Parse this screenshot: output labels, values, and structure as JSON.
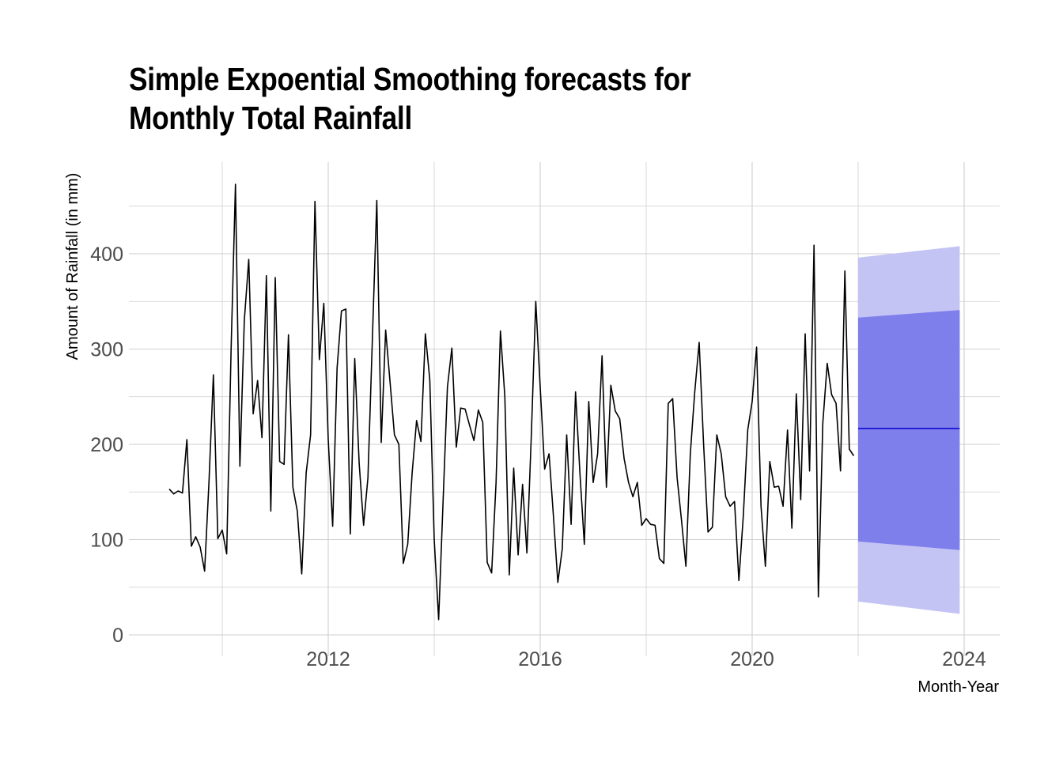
{
  "chart_data": {
    "type": "line",
    "title": "Simple Expoential Smoothing forecasts for Monthly Total Rainfall",
    "title_lines": [
      "Simple Expoential Smoothing forecasts for",
      "Monthly Total Rainfall"
    ],
    "xlabel": "Month-Year",
    "ylabel": "Amount of Rainfall (in mm)",
    "x_ticks": [
      2012,
      2016,
      2020,
      2024
    ],
    "x_tick_labels": [
      "2012",
      "2016",
      "2020",
      "2024"
    ],
    "y_ticks": [
      0,
      100,
      200,
      300,
      400
    ],
    "y_tick_labels": [
      "0",
      "100",
      "200",
      "300",
      "400"
    ],
    "xlim": [
      2008.35,
      2024.75
    ],
    "ylim": [
      -5,
      455
    ],
    "grid": true,
    "legend": "none",
    "series": [
      {
        "name": "Monthly Total Rainfall",
        "color": "#000000",
        "start": 2009.0,
        "step": 0.0833333,
        "values": [
          153,
          148,
          151,
          149,
          205,
          93,
          103,
          92,
          67,
          160,
          273,
          101,
          110,
          85,
          300,
          473,
          177,
          330,
          394,
          232,
          267,
          207,
          377,
          130,
          375,
          182,
          179,
          315,
          155,
          130,
          64,
          170,
          210,
          455,
          289,
          348,
          205,
          114,
          280,
          340,
          342,
          106,
          290,
          180,
          115,
          165,
          310,
          456,
          202,
          320,
          265,
          210,
          200,
          75,
          95,
          170,
          225,
          203,
          316,
          268,
          100,
          16,
          140,
          260,
          301,
          197,
          238,
          237,
          220,
          204,
          236,
          223,
          76,
          65,
          160,
          319,
          250,
          63,
          175,
          84,
          158,
          86,
          210,
          350,
          260,
          174,
          190,
          125,
          55,
          90,
          210,
          116,
          255,
          170,
          95,
          245,
          160,
          190,
          293,
          155,
          262,
          235,
          227,
          185,
          160,
          145,
          160,
          115,
          122,
          116,
          115,
          80,
          75,
          243,
          248,
          165,
          120,
          72,
          190,
          255,
          307,
          200,
          108,
          113,
          210,
          190,
          145,
          135,
          140,
          57,
          125,
          215,
          245,
          302,
          135,
          72,
          182,
          155,
          156,
          135,
          215,
          112,
          253,
          142,
          316,
          172,
          409,
          40,
          222,
          285,
          252,
          243,
          172,
          382,
          195,
          188
        ]
      },
      {
        "name": "Forecast mean",
        "color": "#0000cc",
        "start": 2022.0,
        "step": 0.0833333,
        "values": [
          216.6,
          216.6,
          216.6,
          216.6,
          216.6,
          216.6,
          216.6,
          216.6,
          216.6,
          216.6,
          216.6,
          216.6,
          216.6,
          216.6,
          216.6,
          216.6,
          216.6,
          216.6,
          216.6,
          216.6,
          216.6,
          216.6,
          216.6,
          216.6
        ]
      }
    ],
    "forecast_interval": {
      "start": 2022.0,
      "end": 2023.9167,
      "lo80": [
        98,
        89
      ],
      "hi80": [
        333,
        341
      ],
      "lo95": [
        35,
        22
      ],
      "hi95": [
        396,
        408
      ],
      "color80": "#7f7fec",
      "color95": "#c4c4f4"
    }
  }
}
